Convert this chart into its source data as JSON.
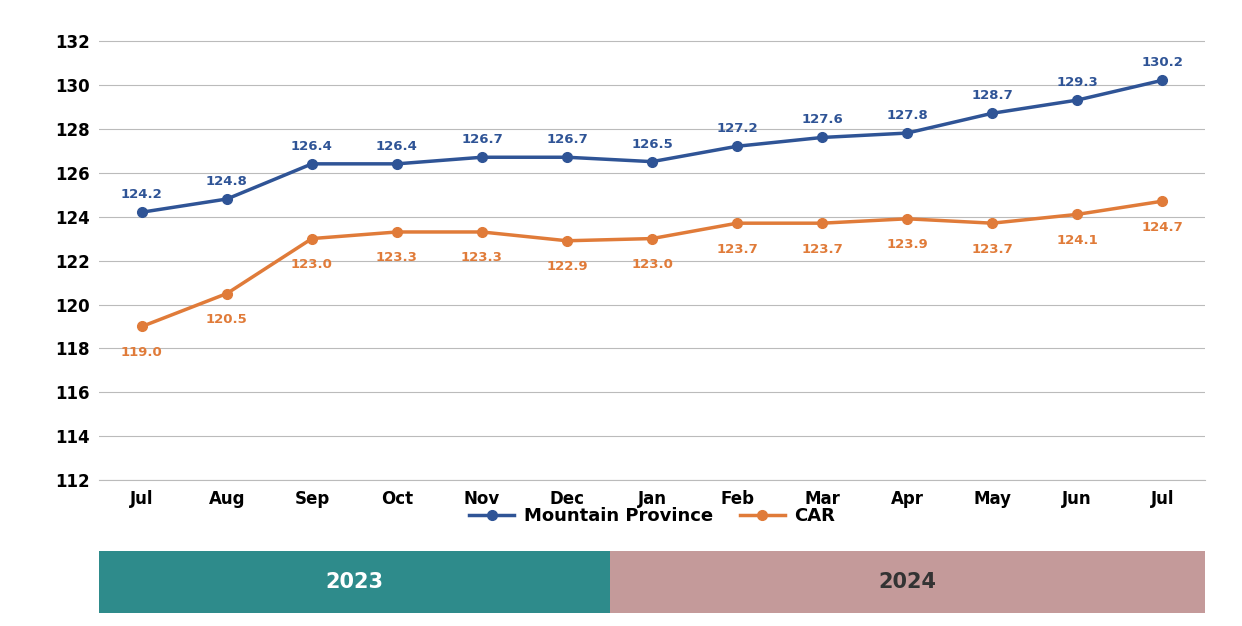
{
  "months": [
    "Jul",
    "Aug",
    "Sep",
    "Oct",
    "Nov",
    "Dec",
    "Jan",
    "Feb",
    "Mar",
    "Apr",
    "May",
    "Jun",
    "Jul"
  ],
  "mountain_province": [
    124.2,
    124.8,
    126.4,
    126.4,
    126.7,
    126.7,
    126.5,
    127.2,
    127.6,
    127.8,
    128.7,
    129.3,
    130.2
  ],
  "car": [
    119.0,
    120.5,
    123.0,
    123.3,
    123.3,
    122.9,
    123.0,
    123.7,
    123.7,
    123.9,
    123.7,
    124.1,
    124.7
  ],
  "mp_color": "#2F5496",
  "car_color": "#E07B39",
  "ylim_min": 112,
  "ylim_max": 133,
  "yticks": [
    112,
    114,
    116,
    118,
    120,
    122,
    124,
    126,
    128,
    130,
    132
  ],
  "legend_mp": "Mountain Province",
  "legend_car": "CAR",
  "year2023_color": "#2E8B8B",
  "year2024_color": "#C49A9A",
  "year2023_label": "2023",
  "year2024_label": "2024",
  "bg_color": "#FFFFFF",
  "grid_color": "#BBBBBB",
  "marker_style": "o",
  "line_width": 2.5,
  "marker_size": 7,
  "mp_label_fontsize": 9.5,
  "car_label_fontsize": 9.5,
  "tick_fontsize": 12,
  "legend_fontsize": 13
}
